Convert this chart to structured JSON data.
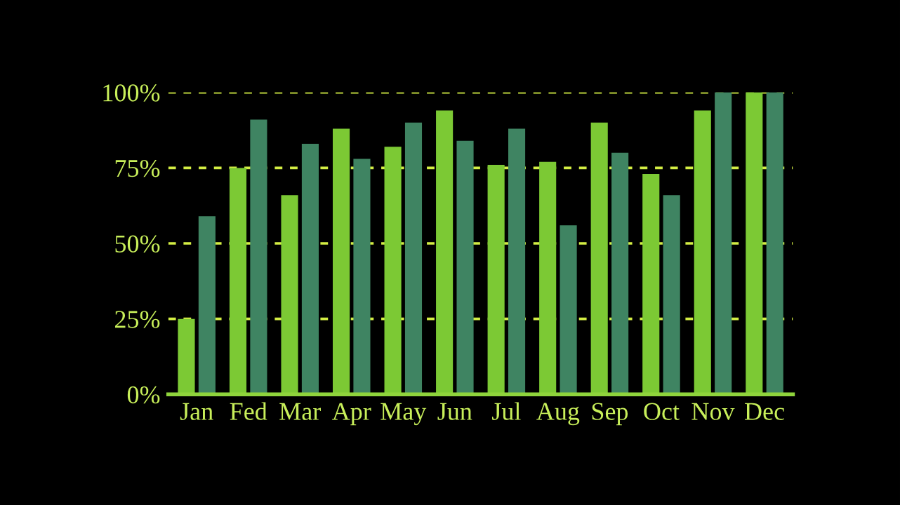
{
  "chart_data": {
    "type": "bar",
    "categories": [
      "Jan",
      "Fed",
      "Mar",
      "Apr",
      "May",
      "Jun",
      "Jul",
      "Aug",
      "Sep",
      "Oct",
      "Nov",
      "Dec"
    ],
    "series": [
      {
        "color": "#7cc934",
        "values": [
          25,
          75,
          66,
          88,
          82,
          94,
          76,
          77,
          90,
          73,
          94,
          100
        ]
      },
      {
        "color": "#3f8462",
        "values": [
          59,
          91,
          83,
          78,
          90,
          84,
          88,
          56,
          80,
          66,
          100,
          100
        ]
      }
    ],
    "ylim": [
      0,
      100
    ],
    "yticks": [
      {
        "value": 0,
        "label": "0%"
      },
      {
        "value": 25,
        "label": "25%"
      },
      {
        "value": 50,
        "label": "50%"
      },
      {
        "value": 75,
        "label": "75%"
      },
      {
        "value": 100,
        "label": "100%"
      }
    ],
    "grid": "y"
  }
}
